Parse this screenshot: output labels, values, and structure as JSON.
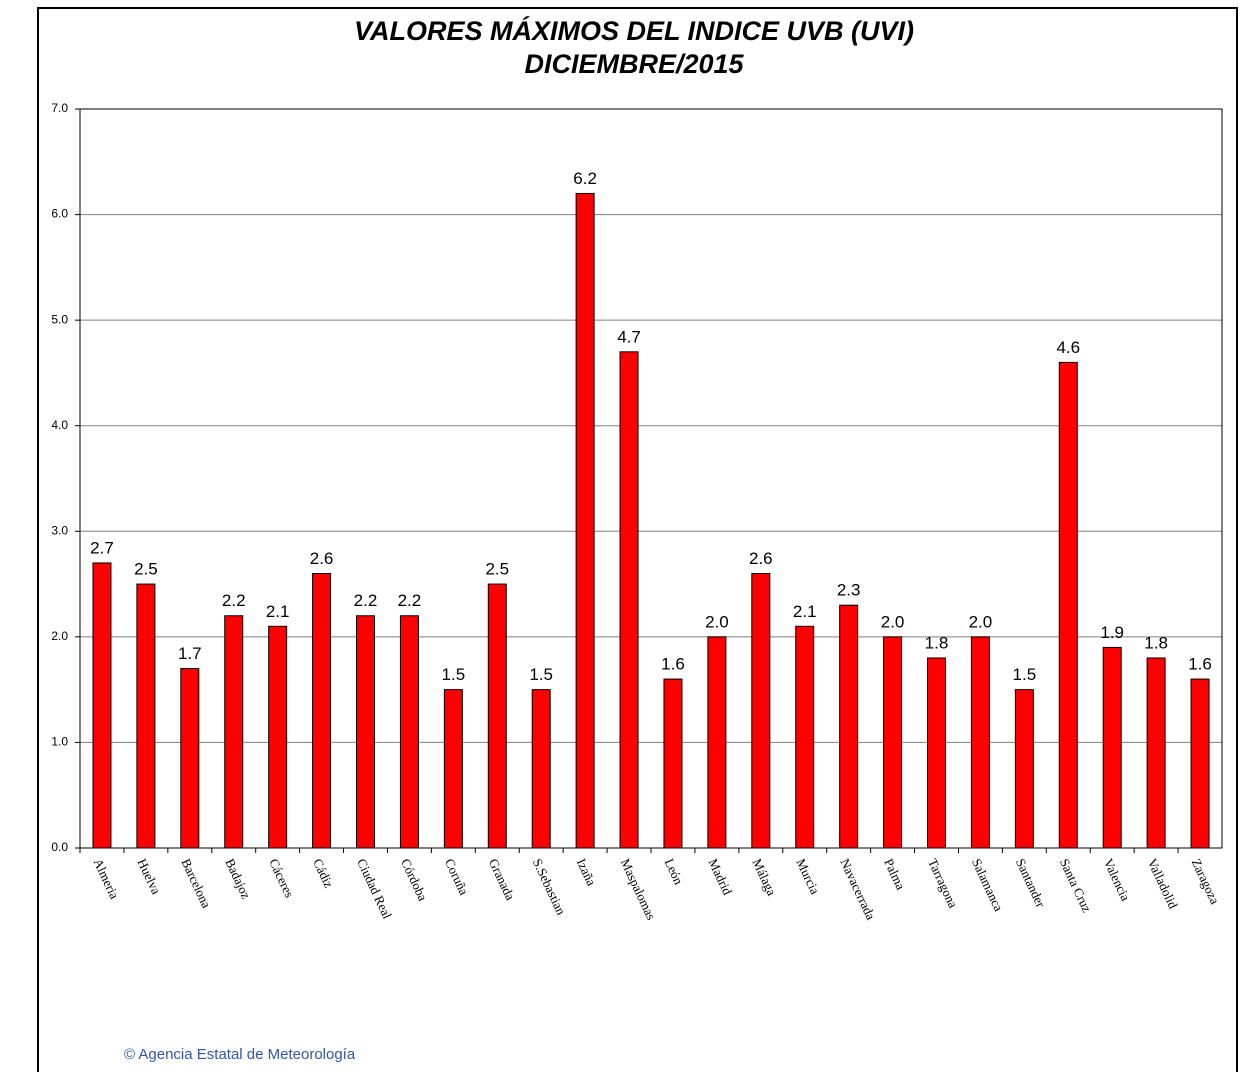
{
  "chart_data": {
    "type": "bar",
    "title": "VALORES MÁXIMOS DEL INDICE UVB (UVI)",
    "subtitle": "DICIEMBRE/2015",
    "categories": [
      "Almeria",
      "Huelva",
      "Barcelona",
      "Badajoz",
      "Cáceres",
      "Cádiz",
      "Ciudad Real",
      "Córdoba",
      "Coruña",
      "Granada",
      "S.Sebastian",
      "Izaña",
      "Maspalomas",
      "León",
      "Madrid",
      "Málaga",
      "Murcia",
      "Navacerrada",
      "Palma",
      "Tarragona",
      "Salamanca",
      "Santander",
      "Santa Cruz",
      "Valencia",
      "Valladolid",
      "Zaragoza"
    ],
    "values": [
      2.7,
      2.5,
      1.7,
      2.2,
      2.1,
      2.6,
      2.2,
      2.2,
      1.5,
      2.5,
      1.5,
      6.2,
      4.7,
      1.6,
      2.0,
      2.6,
      2.1,
      2.3,
      2.0,
      1.8,
      2.0,
      1.5,
      4.6,
      1.9,
      1.8,
      1.6
    ],
    "value_labels": [
      "2.7",
      "2.5",
      "1.7",
      "2.2",
      "2.1",
      "2.6",
      "2.2",
      "2.2",
      "1.5",
      "2.5",
      "1.5",
      "6.2",
      "4.7",
      "1.6",
      "2.0",
      "2.6",
      "2.1",
      "2.3",
      "2.0",
      "1.8",
      "2.0",
      "1.5",
      "4.6",
      "1.9",
      "1.8",
      "1.6"
    ],
    "color": "#ff0000",
    "ylim": [
      0,
      7
    ],
    "yticks": [
      {
        "value": 0,
        "label": "0.0"
      },
      {
        "value": 1,
        "label": "1.0"
      },
      {
        "value": 2,
        "label": "2.0"
      },
      {
        "value": 3,
        "label": "3.0"
      },
      {
        "value": 4,
        "label": "4.0"
      },
      {
        "value": 5,
        "label": "5.0"
      },
      {
        "value": 6,
        "label": "6.0"
      },
      {
        "value": 7,
        "label": "7.0"
      }
    ],
    "grid": true,
    "footer": "© Agencia Estatal de Meteorología"
  }
}
